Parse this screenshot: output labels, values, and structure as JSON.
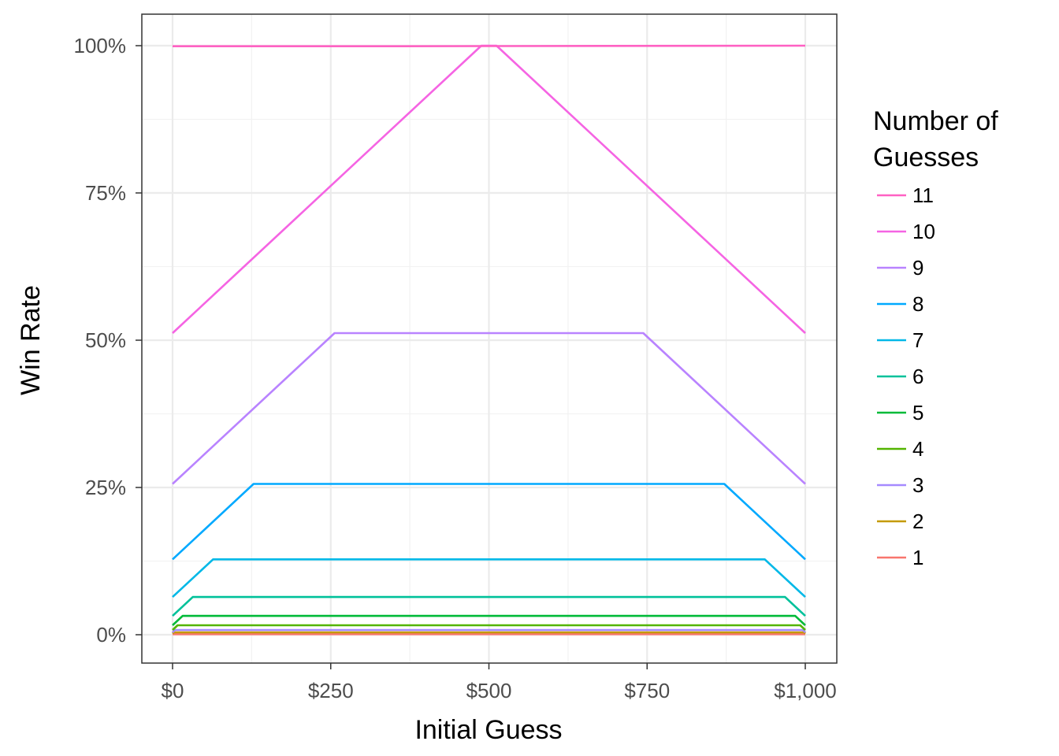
{
  "chart_data": {
    "type": "line",
    "xlabel": "Initial Guess",
    "ylabel": "Win Rate",
    "xlim": [
      0,
      1000
    ],
    "ylim": [
      0,
      1
    ],
    "x_ticks": [
      0,
      250,
      500,
      750,
      1000
    ],
    "x_tick_labels": [
      "$0",
      "$250",
      "$500",
      "$750",
      "$1,000"
    ],
    "y_ticks": [
      0,
      0.25,
      0.5,
      0.75,
      1.0
    ],
    "y_tick_labels": [
      "0%",
      "25%",
      "50%",
      "75%",
      "100%"
    ],
    "grid": true,
    "legend": {
      "title_lines": [
        "Number of",
        "Guesses"
      ],
      "placement": "right"
    },
    "series": [
      {
        "name": "11",
        "color": "#FF61C3",
        "x": [
          0,
          320,
          1000
        ],
        "y": [
          0.999,
          0.999,
          1.0
        ]
      },
      {
        "name": "10",
        "color": "#F564E3",
        "x": [
          0,
          488,
          512,
          1000
        ],
        "y": [
          0.512,
          1.0,
          1.0,
          0.512
        ]
      },
      {
        "name": "9",
        "color": "#B983FF",
        "x": [
          0,
          256,
          744,
          1000
        ],
        "y": [
          0.256,
          0.512,
          0.512,
          0.256
        ]
      },
      {
        "name": "8",
        "color": "#00A9FF",
        "x": [
          0,
          128,
          872,
          1000
        ],
        "y": [
          0.128,
          0.256,
          0.256,
          0.128
        ]
      },
      {
        "name": "7",
        "color": "#00B8E7",
        "x": [
          0,
          64,
          936,
          1000
        ],
        "y": [
          0.064,
          0.128,
          0.128,
          0.064
        ]
      },
      {
        "name": "6",
        "color": "#00C19A",
        "x": [
          0,
          32,
          968,
          1000
        ],
        "y": [
          0.032,
          0.064,
          0.064,
          0.032
        ]
      },
      {
        "name": "5",
        "color": "#00BA38",
        "x": [
          0,
          16,
          984,
          1000
        ],
        "y": [
          0.016,
          0.032,
          0.032,
          0.016
        ]
      },
      {
        "name": "4",
        "color": "#53B400",
        "x": [
          0,
          8,
          992,
          1000
        ],
        "y": [
          0.008,
          0.016,
          0.016,
          0.008
        ]
      },
      {
        "name": "3",
        "color": "#A58AFF",
        "x": [
          0,
          4,
          996,
          1000
        ],
        "y": [
          0.004,
          0.008,
          0.008,
          0.004
        ]
      },
      {
        "name": "2",
        "color": "#C49A00",
        "x": [
          0,
          2,
          998,
          1000
        ],
        "y": [
          0.002,
          0.004,
          0.004,
          0.002
        ]
      },
      {
        "name": "1",
        "color": "#F8766D",
        "x": [
          0,
          1000
        ],
        "y": [
          0.001,
          0.001
        ]
      }
    ]
  }
}
